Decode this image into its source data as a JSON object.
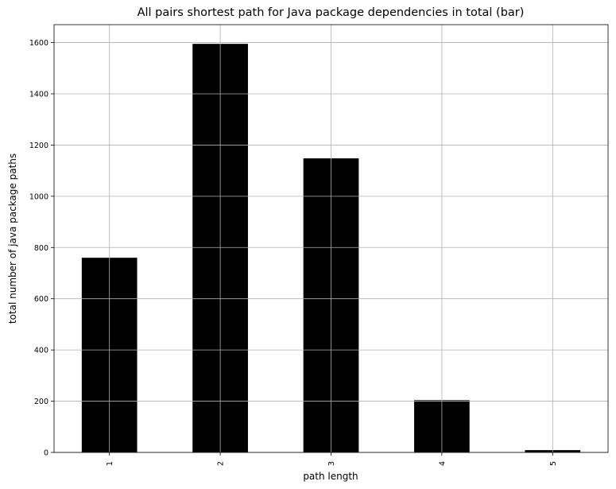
{
  "chart_data": {
    "type": "bar",
    "title": "All pairs shortest path for Java package dependencies in total (bar)",
    "xlabel": "path length",
    "ylabel": "total number of java package paths",
    "categories": [
      "1",
      "2",
      "3",
      "4",
      "5"
    ],
    "values": [
      760,
      1595,
      1148,
      204,
      9
    ],
    "ylim": [
      0,
      1670
    ],
    "yticks": [
      0,
      200,
      400,
      600,
      800,
      1000,
      1200,
      1400,
      1600
    ],
    "bar_color": "#000000",
    "grid": true,
    "legend": "none"
  }
}
